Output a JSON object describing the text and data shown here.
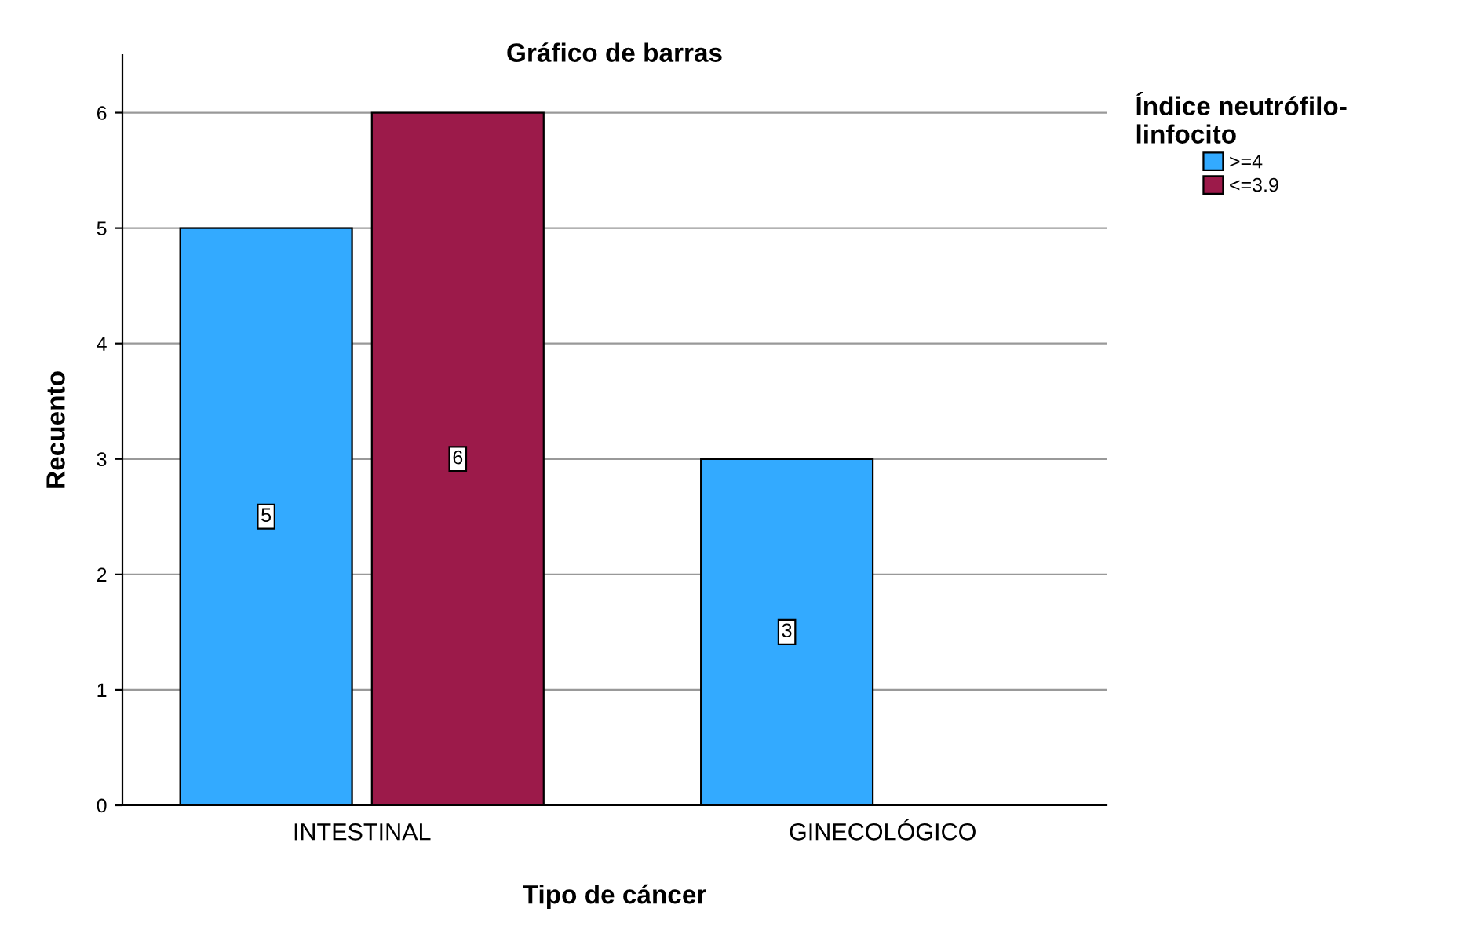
{
  "chart_data": {
    "type": "bar",
    "title": "Gráfico de barras",
    "xlabel": "Tipo de cáncer",
    "ylabel": "Recuento",
    "legend_title": "Índice neutrófilo-linfocito",
    "categories": [
      "INTESTINAL",
      "GINECOLÓGICO"
    ],
    "series": [
      {
        "name": ">=4",
        "color": "#33aaff",
        "values": [
          5,
          3
        ]
      },
      {
        "name": "<=3.9",
        "color": "#9c1a4a",
        "values": [
          6,
          null
        ]
      }
    ],
    "ylim": [
      0,
      6.5
    ],
    "yticks": [
      0,
      1,
      2,
      3,
      4,
      5,
      6
    ],
    "grid": "y",
    "legend": "top right",
    "data_labels": true
  }
}
